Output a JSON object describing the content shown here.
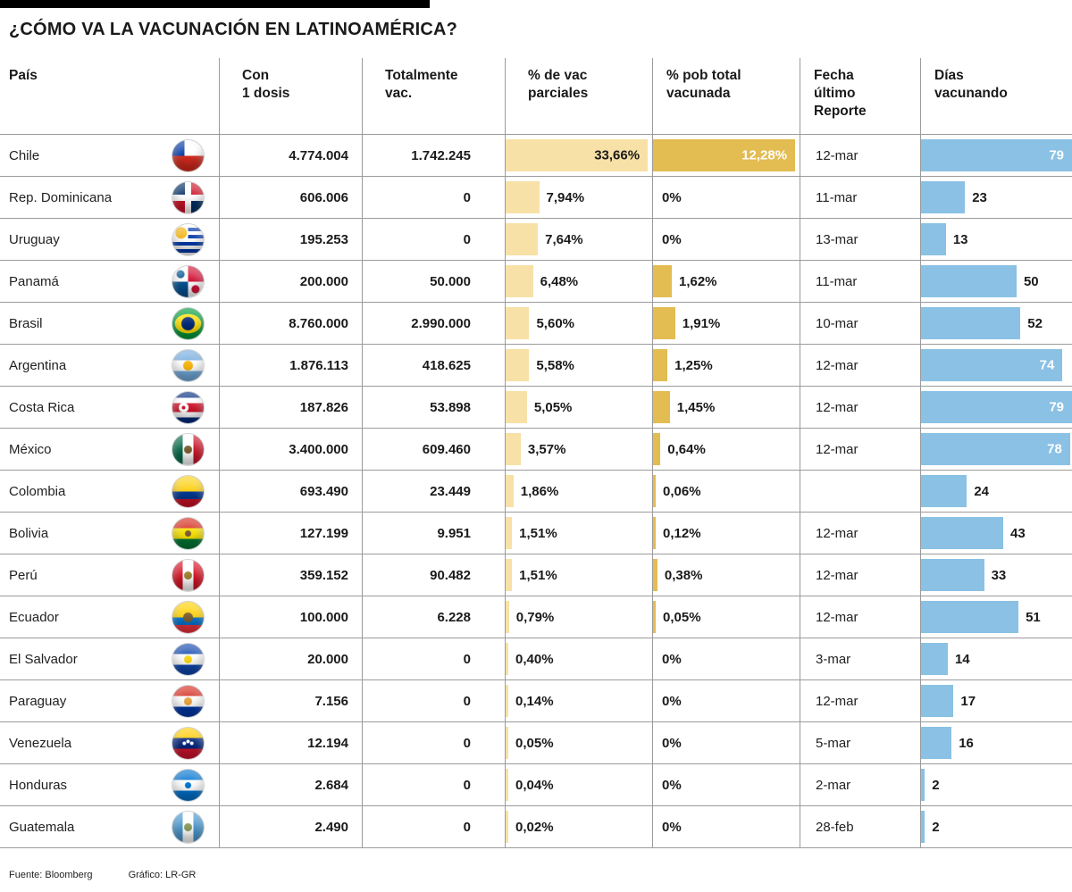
{
  "title": "¿CÓMO VA LA VACUNACIÓN EN LATINOAMÉRICA?",
  "columns": {
    "country": "País",
    "dose1": "Con\n1 dosis",
    "fully": "Totalmente\nvac.",
    "partial": "% de vac\nparciales",
    "total": "% pob total\nvacunada",
    "date": "Fecha\núltimo\nReporte",
    "days": "Días\nvacunando"
  },
  "footer": {
    "source": "Fuente: Bloomberg",
    "credit": "Gráfico: LR-GR"
  },
  "colors": {
    "partial_bar": "#F7E1A6",
    "total_bar": "#E3BC52",
    "days_bar": "#8AC1E4",
    "grid_line": "#9B9B9B",
    "accent_bar": "#000000"
  },
  "chart_data": {
    "type": "table",
    "title": "¿CÓMO VA LA VACUNACIÓN EN LATINOAMÉRICA?",
    "axes": {
      "partial_max": 33.66,
      "total_max": 12.28,
      "days_max": 79
    },
    "rows": [
      {
        "country": "Chile",
        "flag": "chile",
        "dose1": "4.774.004",
        "dose1_num": 4774004,
        "fully": "1.742.245",
        "fully_num": 1742245,
        "partial_pct": "33,66%",
        "partial_num": 33.66,
        "total_pct": "12,28%",
        "total_num": 12.28,
        "date": "12-mar",
        "days": 79
      },
      {
        "country": "Rep. Dominicana",
        "flag": "dominicana",
        "dose1": "606.006",
        "dose1_num": 606006,
        "fully": "0",
        "fully_num": 0,
        "partial_pct": "7,94%",
        "partial_num": 7.94,
        "total_pct": "0%",
        "total_num": 0,
        "date": "11-mar",
        "days": 23
      },
      {
        "country": "Uruguay",
        "flag": "uruguay",
        "dose1": "195.253",
        "dose1_num": 195253,
        "fully": "0",
        "fully_num": 0,
        "partial_pct": "7,64%",
        "partial_num": 7.64,
        "total_pct": "0%",
        "total_num": 0,
        "date": "13-mar",
        "days": 13
      },
      {
        "country": "Panamá",
        "flag": "panama",
        "dose1": "200.000",
        "dose1_num": 200000,
        "fully": "50.000",
        "fully_num": 50000,
        "partial_pct": "6,48%",
        "partial_num": 6.48,
        "total_pct": "1,62%",
        "total_num": 1.62,
        "date": "11-mar",
        "days": 50
      },
      {
        "country": "Brasil",
        "flag": "brasil",
        "dose1": "8.760.000",
        "dose1_num": 8760000,
        "fully": "2.990.000",
        "fully_num": 2990000,
        "partial_pct": "5,60%",
        "partial_num": 5.6,
        "total_pct": "1,91%",
        "total_num": 1.91,
        "date": "10-mar",
        "days": 52
      },
      {
        "country": "Argentina",
        "flag": "argentina",
        "dose1": "1.876.113",
        "dose1_num": 1876113,
        "fully": "418.625",
        "fully_num": 418625,
        "partial_pct": "5,58%",
        "partial_num": 5.58,
        "total_pct": "1,25%",
        "total_num": 1.25,
        "date": "12-mar",
        "days": 74
      },
      {
        "country": "Costa Rica",
        "flag": "costarica",
        "dose1": "187.826",
        "dose1_num": 187826,
        "fully": "53.898",
        "fully_num": 53898,
        "partial_pct": "5,05%",
        "partial_num": 5.05,
        "total_pct": "1,45%",
        "total_num": 1.45,
        "date": "12-mar",
        "days": 79
      },
      {
        "country": "México",
        "flag": "mexico",
        "dose1": "3.400.000",
        "dose1_num": 3400000,
        "fully": "609.460",
        "fully_num": 609460,
        "partial_pct": "3,57%",
        "partial_num": 3.57,
        "total_pct": "0,64%",
        "total_num": 0.64,
        "date": "12-mar",
        "days": 78
      },
      {
        "country": "Colombia",
        "flag": "colombia",
        "dose1": "693.490",
        "dose1_num": 693490,
        "fully": "23.449",
        "fully_num": 23449,
        "partial_pct": "1,86%",
        "partial_num": 1.86,
        "total_pct": "0,06%",
        "total_num": 0.06,
        "date": "",
        "days": 24
      },
      {
        "country": "Bolivia",
        "flag": "bolivia",
        "dose1": "127.199",
        "dose1_num": 127199,
        "fully": "9.951",
        "fully_num": 9951,
        "partial_pct": "1,51%",
        "partial_num": 1.51,
        "total_pct": "0,12%",
        "total_num": 0.12,
        "date": "12-mar",
        "days": 43
      },
      {
        "country": "Perú",
        "flag": "peru",
        "dose1": "359.152",
        "dose1_num": 359152,
        "fully": "90.482",
        "fully_num": 90482,
        "partial_pct": "1,51%",
        "partial_num": 1.51,
        "total_pct": "0,38%",
        "total_num": 0.38,
        "date": "12-mar",
        "days": 33
      },
      {
        "country": "Ecuador",
        "flag": "ecuador",
        "dose1": "100.000",
        "dose1_num": 100000,
        "fully": "6.228",
        "fully_num": 6228,
        "partial_pct": "0,79%",
        "partial_num": 0.79,
        "total_pct": "0,05%",
        "total_num": 0.05,
        "date": "12-mar",
        "days": 51
      },
      {
        "country": "El Salvador",
        "flag": "elsalvador",
        "dose1": "20.000",
        "dose1_num": 20000,
        "fully": "0",
        "fully_num": 0,
        "partial_pct": "0,40%",
        "partial_num": 0.4,
        "total_pct": "0%",
        "total_num": 0,
        "date": "3-mar",
        "days": 14
      },
      {
        "country": "Paraguay",
        "flag": "paraguay",
        "dose1": "7.156",
        "dose1_num": 7156,
        "fully": "0",
        "fully_num": 0,
        "partial_pct": "0,14%",
        "partial_num": 0.14,
        "total_pct": "0%",
        "total_num": 0,
        "date": "12-mar",
        "days": 17
      },
      {
        "country": "Venezuela",
        "flag": "venezuela",
        "dose1": "12.194",
        "dose1_num": 12194,
        "fully": "0",
        "fully_num": 0,
        "partial_pct": "0,05%",
        "partial_num": 0.05,
        "total_pct": "0%",
        "total_num": 0,
        "date": "5-mar",
        "days": 16
      },
      {
        "country": "Honduras",
        "flag": "honduras",
        "dose1": "2.684",
        "dose1_num": 2684,
        "fully": "0",
        "fully_num": 0,
        "partial_pct": "0,04%",
        "partial_num": 0.04,
        "total_pct": "0%",
        "total_num": 0,
        "date": "2-mar",
        "days": 2
      },
      {
        "country": "Guatemala",
        "flag": "guatemala",
        "dose1": "2.490",
        "dose1_num": 2490,
        "fully": "0",
        "fully_num": 0,
        "partial_pct": "0,02%",
        "partial_num": 0.02,
        "total_pct": "0%",
        "total_num": 0,
        "date": "28-feb",
        "days": 2
      }
    ]
  }
}
